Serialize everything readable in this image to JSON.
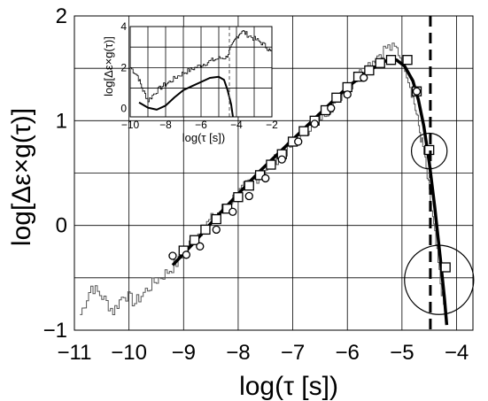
{
  "chart_data": [
    {
      "id": "main",
      "type": "line",
      "xlabel": "log(τ [s])",
      "ylabel": "log[Δε×g(τ)]",
      "xlim": [
        -11,
        -3.7
      ],
      "ylim": [
        -1,
        2
      ],
      "x_ticks": [
        -11,
        -10,
        -9,
        -8,
        -7,
        -6,
        -5,
        -4
      ],
      "x_tick_labels": [
        "−11",
        "−10",
        "−9",
        "−8",
        "−7",
        "−6",
        "−5",
        "−4"
      ],
      "y_ticks": [
        -1,
        0,
        1,
        2
      ],
      "y_tick_labels": [
        "−1",
        "0",
        "1",
        "2"
      ],
      "grid": true,
      "grid_x": [
        -10,
        -9,
        -8,
        -7,
        -6,
        -5,
        -4
      ],
      "grid_y": [
        -0.5,
        0,
        0.5,
        1,
        1.5
      ],
      "vline": {
        "x": -4.48,
        "style": "dashed",
        "color": "#000000"
      },
      "series": [
        {
          "kind": "noisy-line",
          "color": "#555555",
          "points": [
            [
              -10.9,
              -0.85
            ],
            [
              -10.7,
              -0.58
            ],
            [
              -10.5,
              -0.68
            ],
            [
              -10.3,
              -0.82
            ],
            [
              -10.1,
              -0.65
            ],
            [
              -9.9,
              -0.74
            ],
            [
              -9.7,
              -0.62
            ],
            [
              -9.5,
              -0.52
            ],
            [
              -9.3,
              -0.44
            ],
            [
              -9.1,
              -0.34
            ],
            [
              -8.9,
              -0.18
            ],
            [
              -8.7,
              -0.05
            ],
            [
              -8.5,
              0.06
            ],
            [
              -8.3,
              0.16
            ],
            [
              -8.1,
              0.26
            ],
            [
              -7.9,
              0.36
            ],
            [
              -7.7,
              0.44
            ],
            [
              -7.5,
              0.54
            ],
            [
              -7.3,
              0.64
            ],
            [
              -7.1,
              0.73
            ],
            [
              -6.9,
              0.84
            ],
            [
              -6.7,
              0.94
            ],
            [
              -6.5,
              1.04
            ],
            [
              -6.3,
              1.14
            ],
            [
              -6.1,
              1.26
            ],
            [
              -5.9,
              1.38
            ],
            [
              -5.7,
              1.5
            ],
            [
              -5.5,
              1.6
            ],
            [
              -5.3,
              1.7
            ],
            [
              -5.1,
              1.68
            ],
            [
              -4.95,
              1.52
            ],
            [
              -4.8,
              1.22
            ],
            [
              -4.7,
              0.95
            ],
            [
              -4.6,
              0.68
            ],
            [
              -4.5,
              0.3
            ],
            [
              -4.4,
              -0.1
            ],
            [
              -4.3,
              -0.55
            ],
            [
              -4.2,
              -0.9
            ]
          ]
        },
        {
          "kind": "smooth-fit",
          "color": "#000000",
          "points": [
            [
              -9.2,
              -0.38
            ],
            [
              -8.8,
              -0.16
            ],
            [
              -8.4,
              0.08
            ],
            [
              -8.0,
              0.3
            ],
            [
              -7.6,
              0.52
            ],
            [
              -7.2,
              0.72
            ],
            [
              -6.8,
              0.92
            ],
            [
              -6.4,
              1.12
            ],
            [
              -6.0,
              1.32
            ],
            [
              -5.6,
              1.48
            ],
            [
              -5.3,
              1.57
            ],
            [
              -5.1,
              1.58
            ],
            [
              -4.95,
              1.52
            ],
            [
              -4.8,
              1.38
            ],
            [
              -4.7,
              1.2
            ],
            [
              -4.6,
              0.95
            ],
            [
              -4.5,
              0.6
            ],
            [
              -4.4,
              0.18
            ],
            [
              -4.3,
              -0.3
            ],
            [
              -4.22,
              -0.7
            ],
            [
              -4.18,
              -0.95
            ]
          ]
        },
        {
          "kind": "squares",
          "points": [
            [
              -9.0,
              -0.24
            ],
            [
              -8.8,
              -0.14
            ],
            [
              -8.6,
              -0.04
            ],
            [
              -8.4,
              0.06
            ],
            [
              -8.2,
              0.16
            ],
            [
              -8.0,
              0.27
            ],
            [
              -7.8,
              0.38
            ],
            [
              -7.6,
              0.48
            ],
            [
              -7.4,
              0.58
            ],
            [
              -7.2,
              0.68
            ],
            [
              -7.0,
              0.8
            ],
            [
              -6.8,
              0.9
            ],
            [
              -6.6,
              1.0
            ],
            [
              -6.4,
              1.1
            ],
            [
              -6.2,
              1.22
            ],
            [
              -6.0,
              1.32
            ],
            [
              -5.8,
              1.42
            ],
            [
              -5.6,
              1.48
            ],
            [
              -5.4,
              1.55
            ],
            [
              -5.2,
              1.58
            ],
            [
              -4.9,
              1.58
            ],
            [
              -4.73,
              1.28
            ],
            [
              -4.5,
              0.72
            ],
            [
              -4.2,
              -0.4
            ]
          ]
        },
        {
          "kind": "circles",
          "points": [
            [
              -9.2,
              -0.29
            ],
            [
              -8.95,
              -0.28
            ],
            [
              -8.7,
              -0.2
            ],
            [
              -8.4,
              -0.04
            ],
            [
              -8.1,
              0.13
            ],
            [
              -7.8,
              0.28
            ],
            [
              -7.5,
              0.45
            ],
            [
              -7.2,
              0.63
            ],
            [
              -6.9,
              0.8
            ],
            [
              -6.6,
              0.97
            ],
            [
              -6.3,
              1.12
            ],
            [
              -6.0,
              1.25
            ],
            [
              -5.7,
              1.41
            ],
            [
              -4.73,
              1.28
            ]
          ]
        },
        {
          "kind": "large-circles",
          "points": [
            [
              -4.5,
              0.71,
              0.17
            ],
            [
              -4.32,
              -0.52,
              0.33
            ]
          ]
        }
      ]
    },
    {
      "id": "inset",
      "type": "line",
      "xlabel": "log(τ [s])",
      "ylabel": "log[Δε×g(τ)]",
      "xlim": [
        -10,
        -2
      ],
      "ylim": [
        -0.4,
        4
      ],
      "x_ticks": [
        -10,
        -8,
        -6,
        -4,
        -2
      ],
      "x_tick_labels": [
        "−10",
        "−8",
        "−6",
        "−4",
        "−2"
      ],
      "y_ticks": [
        0,
        2,
        4
      ],
      "y_tick_labels": [
        "0",
        "2",
        "4"
      ],
      "grid": true,
      "grid_x": [
        -9,
        -8,
        -7,
        -6,
        -5,
        -4,
        -3
      ],
      "grid_y": [
        1,
        2,
        3
      ],
      "vline": {
        "x": -4.4,
        "style": "dashed",
        "color": "#555555"
      },
      "series": [
        {
          "kind": "noisy-line",
          "color": "#000000",
          "points": [
            [
              -10,
              2.0
            ],
            [
              -9.6,
              1.6
            ],
            [
              -9.3,
              0.9
            ],
            [
              -9.0,
              0.4
            ],
            [
              -8.6,
              0.8
            ],
            [
              -8.2,
              1.1
            ],
            [
              -7.8,
              1.3
            ],
            [
              -7.4,
              1.55
            ],
            [
              -7.0,
              1.75
            ],
            [
              -6.6,
              1.9
            ],
            [
              -6.2,
              2.05
            ],
            [
              -5.8,
              2.2
            ],
            [
              -5.4,
              2.35
            ],
            [
              -5.0,
              2.45
            ],
            [
              -4.6,
              2.5
            ],
            [
              -4.3,
              3.0
            ],
            [
              -4.0,
              3.5
            ],
            [
              -3.7,
              3.8
            ],
            [
              -3.4,
              3.6
            ],
            [
              -3.0,
              3.4
            ],
            [
              -2.6,
              3.2
            ],
            [
              -2.2,
              2.9
            ],
            [
              -2.0,
              2.7
            ]
          ]
        },
        {
          "kind": "smooth-fit",
          "color": "#000000",
          "points": [
            [
              -9.5,
              0.3
            ],
            [
              -9.0,
              0.05
            ],
            [
              -8.5,
              -0.05
            ],
            [
              -8.0,
              0.15
            ],
            [
              -7.5,
              0.55
            ],
            [
              -7.0,
              0.9
            ],
            [
              -6.5,
              1.1
            ],
            [
              -6.0,
              1.3
            ],
            [
              -5.5,
              1.5
            ],
            [
              -5.0,
              1.55
            ],
            [
              -4.7,
              1.4
            ],
            [
              -4.5,
              0.9
            ],
            [
              -4.3,
              0.2
            ],
            [
              -4.2,
              -0.4
            ]
          ]
        }
      ]
    }
  ]
}
